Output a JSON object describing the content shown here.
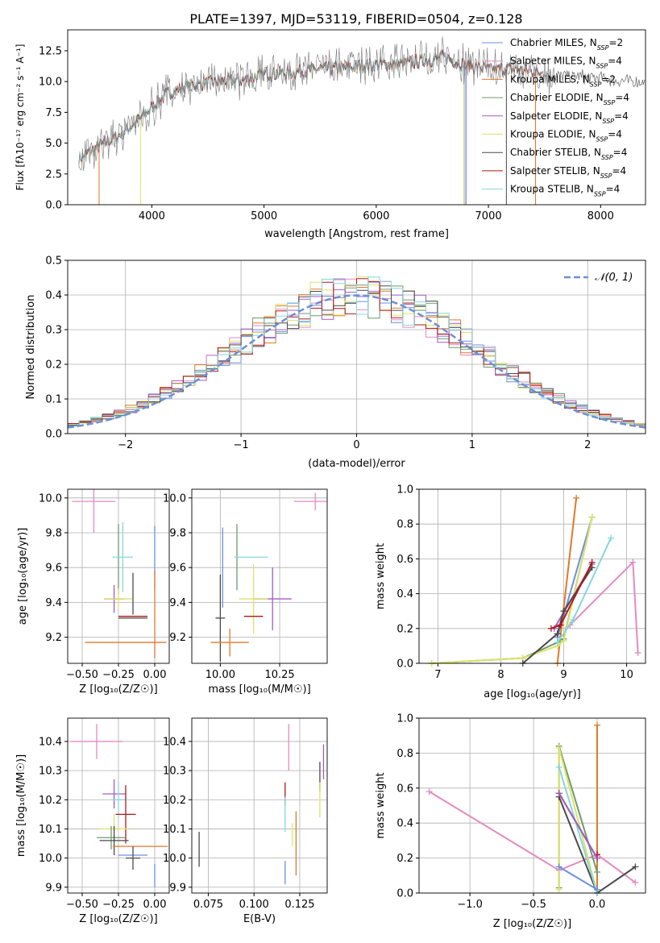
{
  "title": "PLATE=1397, MJD=53119, FIBERID=0504, z=0.128",
  "colors": {
    "Chabrier MILES": "#6b8fe0",
    "Salpeter MILES": "#e58ac1",
    "Kroupa MILES": "#e07a28",
    "Chabrier ELODIE": "#6e9a6e",
    "Salpeter ELODIE": "#a05cc8",
    "Kroupa ELODIE": "#dde36a",
    "Chabrier STELIB": "#4a4a4a",
    "Salpeter STELIB": "#b01818",
    "Kroupa STELIB": "#86d6dc",
    "gauss": "#6b8fd6"
  },
  "legend_spectrum": [
    {
      "model": "Chabrier MILES",
      "label": "Chabrier MILES, N",
      "sub": "SSP",
      "tail": "=2"
    },
    {
      "model": "Salpeter MILES",
      "label": "Salpeter MILES, N",
      "sub": "SSP",
      "tail": "=4"
    },
    {
      "model": "Kroupa MILES",
      "label": "Kroupa MILES, N",
      "sub": "SSP",
      "tail": "=2"
    },
    {
      "model": "Chabrier ELODIE",
      "label": "Chabrier ELODIE, N",
      "sub": "SSP",
      "tail": "=4"
    },
    {
      "model": "Salpeter ELODIE",
      "label": "Salpeter ELODIE, N",
      "sub": "SSP",
      "tail": "=4"
    },
    {
      "model": "Kroupa ELODIE",
      "label": "Kroupa ELODIE, N",
      "sub": "SSP",
      "tail": "=4"
    },
    {
      "model": "Chabrier STELIB",
      "label": "Chabrier STELIB, N",
      "sub": "SSP",
      "tail": "=4"
    },
    {
      "model": "Salpeter STELIB",
      "label": "Salpeter STELIB, N",
      "sub": "SSP",
      "tail": "=4"
    },
    {
      "model": "Kroupa STELIB",
      "label": "Kroupa STELIB, N",
      "sub": "SSP",
      "tail": "=4"
    }
  ],
  "chart_data": [
    {
      "id": "spectrum",
      "type": "line",
      "xlabel": "wavelength [Angstrom, rest frame]",
      "ylabel": "Flux [fλ10⁻¹⁷ erg cm⁻² s⁻¹ A⁻¹]",
      "xlim": [
        3250,
        8400
      ],
      "ylim": [
        0,
        14.2
      ],
      "xticks": [
        4000,
        5000,
        6000,
        7000,
        8000
      ],
      "yticks": [
        0.0,
        2.5,
        5.0,
        7.5,
        10.0,
        12.5
      ],
      "grid": false,
      "legend": "top-right",
      "continuum_x": [
        3350,
        3500,
        3700,
        3850,
        3950,
        4050,
        4150,
        4300,
        4500,
        4800,
        5000,
        5200,
        5500,
        5800,
        6000,
        6200,
        6500,
        6600,
        6800,
        7000,
        7200,
        7400,
        7600,
        7800,
        8000,
        8200,
        8400
      ],
      "continuum_y": [
        3.7,
        4.6,
        5.6,
        6.6,
        7.5,
        8.3,
        9.1,
        9.6,
        9.9,
        10.1,
        10.6,
        10.7,
        11.0,
        11.2,
        11.4,
        11.4,
        11.8,
        12.0,
        11.3,
        11.0,
        11.0,
        10.8,
        10.5,
        10.4,
        10.3,
        10.1,
        10.0
      ]
    },
    {
      "id": "residuals",
      "type": "histogram",
      "xlabel": "(data-model)/error",
      "ylabel": "Normed distribution",
      "xlim": [
        -2.5,
        2.5
      ],
      "ylim": [
        0,
        0.5
      ],
      "xticks": [
        -2,
        -1,
        0,
        1,
        2
      ],
      "yticks": [
        0.0,
        0.1,
        0.2,
        0.3,
        0.4,
        0.5
      ],
      "grid": true,
      "legend": "top-right",
      "gauss_label": "𝒩(0, 1)"
    },
    {
      "id": "age-vs-Z",
      "type": "scatter",
      "xlabel": "Z [log₁₀(Z/Z☉)]",
      "ylabel": "age  [log₁₀(age/yr)]",
      "xlim": [
        -0.6,
        0.1
      ],
      "ylim": [
        9.05,
        10.05
      ],
      "xticks": [
        -0.5,
        -0.25,
        0.0
      ],
      "xticklabels": [
        "−0.50",
        "−0.25",
        "0.00"
      ],
      "yticks": [
        9.2,
        9.4,
        9.6,
        9.8,
        10.0
      ],
      "grid": true,
      "points": [
        {
          "model": "Salpeter MILES",
          "x": -0.42,
          "y": 9.98,
          "xerr": 0.15,
          "yerr": 0.18
        },
        {
          "model": "Chabrier ELODIE",
          "x": -0.25,
          "y": 9.65,
          "xerr": 0.0,
          "yerr": 0.2
        },
        {
          "model": "Kroupa STELIB",
          "x": -0.22,
          "y": 9.66,
          "xerr": 0.07,
          "yerr": 0.2
        },
        {
          "model": "Chabrier MILES",
          "x": 0.0,
          "y": 9.66,
          "xerr": 0.0,
          "yerr": 0.18
        },
        {
          "model": "Salpeter ELODIE",
          "x": -0.28,
          "y": 9.42,
          "xerr": 0.07,
          "yerr": 0.08
        },
        {
          "model": "Kroupa ELODIE",
          "x": -0.25,
          "y": 9.42,
          "xerr": 0.1,
          "yerr": 0.06
        },
        {
          "model": "Chabrier STELIB",
          "x": -0.15,
          "y": 9.45,
          "xerr": 0.0,
          "yerr": 0.12
        },
        {
          "model": "Salpeter STELIB",
          "x": -0.15,
          "y": 9.32,
          "xerr": 0.1,
          "yerr": 0.0
        },
        {
          "model": "Chabrier STELIB",
          "x": -0.15,
          "y": 9.31,
          "xerr": 0.1,
          "yerr": 0.0
        },
        {
          "model": "Kroupa MILES",
          "x": -0.2,
          "y": 9.17,
          "xerr": 0.28,
          "yerr": 0.0
        },
        {
          "model": "Kroupa MILES",
          "x": 0.0,
          "y": 9.33,
          "xerr": 0.0,
          "yerr": 0.25
        }
      ]
    },
    {
      "id": "age-vs-mass",
      "type": "scatter",
      "xlabel": "mass [log₁₀(M/M☉)]",
      "xlim": [
        9.88,
        10.45
      ],
      "ylim": [
        9.05,
        10.05
      ],
      "xticks": [
        10.0,
        10.25
      ],
      "xticklabels": [
        "10.00",
        "10.25"
      ],
      "yticks": [
        9.2,
        9.4,
        9.6,
        9.8,
        10.0
      ],
      "grid": true,
      "points": [
        {
          "model": "Salpeter MILES",
          "x": 10.4,
          "y": 9.98,
          "xerr": 0.09,
          "yerr": 0.05
        },
        {
          "model": "Chabrier ELODIE",
          "x": 10.07,
          "y": 9.66,
          "xerr": 0.0,
          "yerr": 0.19
        },
        {
          "model": "Kroupa STELIB",
          "x": 10.13,
          "y": 9.66,
          "xerr": 0.07,
          "yerr": 0.0
        },
        {
          "model": "Salpeter ELODIE",
          "x": 10.22,
          "y": 9.42,
          "xerr": 0.08,
          "yerr": 0.18
        },
        {
          "model": "Kroupa ELODIE",
          "x": 10.14,
          "y": 9.42,
          "xerr": 0.06,
          "yerr": 0.2
        },
        {
          "model": "Chabrier MILES",
          "x": 10.01,
          "y": 9.6,
          "xerr": 0.0,
          "yerr": 0.23
        },
        {
          "model": "Chabrier STELIB",
          "x": 10.0,
          "y": 9.31,
          "xerr": 0.02,
          "yerr": 0.25
        },
        {
          "model": "Salpeter STELIB",
          "x": 10.14,
          "y": 9.32,
          "xerr": 0.04,
          "yerr": 0.0
        },
        {
          "model": "Kroupa MILES",
          "x": 10.04,
          "y": 9.17,
          "xerr": 0.08,
          "yerr": 0.08
        }
      ]
    },
    {
      "id": "weight-vs-age",
      "type": "line",
      "xlabel": "age  [log₁₀(age/yr)]",
      "ylabel": "mass weight",
      "xlim": [
        6.7,
        10.3
      ],
      "ylim": [
        0,
        1
      ],
      "xticks": [
        7,
        8,
        9,
        10
      ],
      "yticks": [
        0.0,
        0.2,
        0.4,
        0.6,
        0.8,
        1.0
      ],
      "grid": true,
      "series": [
        {
          "model": "Chabrier MILES",
          "x": [
            8.9,
            9.45
          ],
          "y": [
            0.15,
            0.84
          ]
        },
        {
          "model": "Salpeter MILES",
          "x": [
            9.1,
            10.1,
            10.18
          ],
          "y": [
            0.22,
            0.58,
            0.06
          ]
        },
        {
          "model": "Kroupa MILES",
          "x": [
            8.9,
            9.2
          ],
          "y": [
            0.0,
            0.95
          ]
        },
        {
          "model": "Chabrier ELODIE",
          "x": [
            6.9,
            8.35,
            8.9,
            9.0,
            9.45
          ],
          "y": [
            0.0,
            0.03,
            0.12,
            0.14,
            0.84
          ]
        },
        {
          "model": "Salpeter ELODIE",
          "x": [
            8.85,
            9.45
          ],
          "y": [
            0.2,
            0.57
          ]
        },
        {
          "model": "Kroupa ELODIE",
          "x": [
            6.9,
            8.35,
            8.9,
            9.0,
            9.45
          ],
          "y": [
            0.0,
            0.03,
            0.1,
            0.13,
            0.84
          ]
        },
        {
          "model": "Chabrier STELIB",
          "x": [
            8.35,
            8.9,
            9.0,
            9.45
          ],
          "y": [
            0.0,
            0.17,
            0.3,
            0.55
          ]
        },
        {
          "model": "Salpeter STELIB",
          "x": [
            8.8,
            8.95,
            9.45
          ],
          "y": [
            0.2,
            0.22,
            0.58
          ]
        },
        {
          "model": "Kroupa STELIB",
          "x": [
            8.9,
            9.15,
            9.75
          ],
          "y": [
            0.12,
            0.25,
            0.72
          ]
        }
      ]
    },
    {
      "id": "mass-vs-Z",
      "type": "scatter",
      "xlabel": "Z [log₁₀(Z/Z☉)]",
      "ylabel": "mass [log₁₀(M/M☉)]",
      "xlim": [
        -0.6,
        0.1
      ],
      "ylim": [
        9.88,
        10.48
      ],
      "xticks": [
        -0.5,
        -0.25,
        0.0
      ],
      "xticklabels": [
        "−0.50",
        "−0.25",
        "0.00"
      ],
      "yticks": [
        9.9,
        10.0,
        10.1,
        10.2,
        10.3,
        10.4
      ],
      "grid": true,
      "points": [
        {
          "model": "Salpeter MILES",
          "x": -0.4,
          "y": 10.4,
          "xerr": 0.18,
          "yerr": 0.06
        },
        {
          "model": "Salpeter ELODIE",
          "x": -0.28,
          "y": 10.22,
          "xerr": 0.08,
          "yerr": 0.05
        },
        {
          "model": "Kroupa STELIB",
          "x": -0.25,
          "y": 10.2,
          "xerr": 0.05,
          "yerr": 0.06
        },
        {
          "model": "Salpeter STELIB",
          "x": -0.2,
          "y": 10.15,
          "xerr": 0.07,
          "yerr": 0.1
        },
        {
          "model": "Kroupa ELODIE",
          "x": -0.28,
          "y": 10.1,
          "xerr": 0.1,
          "yerr": 0.05
        },
        {
          "model": "Chabrier ELODIE",
          "x": -0.3,
          "y": 10.07,
          "xerr": 0.1,
          "yerr": 0.04
        },
        {
          "model": "Chabrier STELIB",
          "x": -0.28,
          "y": 10.06,
          "xerr": 0.1,
          "yerr": 0.05
        },
        {
          "model": "Kroupa MILES",
          "x": -0.1,
          "y": 10.04,
          "xerr": 0.19,
          "yerr": 0.0
        },
        {
          "model": "Chabrier MILES",
          "x": -0.15,
          "y": 10.01,
          "xerr": 0.1,
          "yerr": 0.0
        },
        {
          "model": "Chabrier STELIB",
          "x": -0.15,
          "y": 10.0,
          "xerr": 0.05,
          "yerr": 0.04
        },
        {
          "model": "Chabrier MILES",
          "x": 0.0,
          "y": 9.94,
          "xerr": 0.0,
          "yerr": 0.04
        }
      ]
    },
    {
      "id": "mass-vs-EBV",
      "type": "scatter",
      "xlabel": "E(B-V)",
      "xlim": [
        0.066,
        0.14
      ],
      "ylim": [
        9.88,
        10.48
      ],
      "xticks": [
        0.075,
        0.1,
        0.125
      ],
      "xticklabels": [
        "0.075",
        "0.100",
        "0.125"
      ],
      "yticks": [
        9.9,
        10.0,
        10.1,
        10.2,
        10.3,
        10.4
      ],
      "grid": true,
      "points": [
        {
          "model": "Salpeter MILES",
          "x": 0.119,
          "y": 10.38,
          "xerr": 0.0,
          "yerr": 0.08
        },
        {
          "model": "Salpeter ELODIE",
          "x": 0.138,
          "y": 10.33,
          "xerr": 0.0,
          "yerr": 0.06
        },
        {
          "model": "Chabrier STELIB",
          "x": 0.136,
          "y": 10.28,
          "xerr": 0.0,
          "yerr": 0.05
        },
        {
          "model": "Salpeter STELIB",
          "x": 0.117,
          "y": 10.22,
          "xerr": 0.0,
          "yerr": 0.04
        },
        {
          "model": "Kroupa ELODIE",
          "x": 0.136,
          "y": 10.2,
          "xerr": 0.0,
          "yerr": 0.06
        },
        {
          "model": "Kroupa STELIB",
          "x": 0.117,
          "y": 10.15,
          "xerr": 0.0,
          "yerr": 0.06
        },
        {
          "model": "Kroupa MILES",
          "x": 0.123,
          "y": 10.05,
          "xerr": 0.0,
          "yerr": 0.11
        },
        {
          "model": "Chabrier STELIB",
          "x": 0.07,
          "y": 10.03,
          "xerr": 0.0,
          "yerr": 0.06
        },
        {
          "model": "Kroupa ELODIE",
          "x": 0.121,
          "y": 10.08,
          "xerr": 0.0,
          "yerr": 0.04
        },
        {
          "model": "Chabrier MILES",
          "x": 0.117,
          "y": 9.95,
          "xerr": 0.0,
          "yerr": 0.04
        }
      ]
    },
    {
      "id": "weight-vs-Z",
      "type": "line",
      "xlabel": "Z [log₁₀(Z/Z☉)]",
      "ylabel": "mass weight",
      "xlim": [
        -1.4,
        0.38
      ],
      "ylim": [
        0,
        1
      ],
      "xticks": [
        -1.0,
        -0.5,
        0.0
      ],
      "xticklabels": [
        "−1.0",
        "−0.5",
        "0.0"
      ],
      "yticks": [
        0.0,
        0.2,
        0.4,
        0.6,
        0.8,
        1.0
      ],
      "grid": true,
      "series": [
        {
          "model": "Salpeter MILES",
          "x": [
            -1.32,
            -0.3,
            0.0,
            0.3
          ],
          "y": [
            0.58,
            0.13,
            0.22,
            0.06
          ]
        },
        {
          "model": "Kroupa MILES",
          "x": [
            0.0,
            0.0
          ],
          "y": [
            0.0,
            0.96
          ]
        },
        {
          "model": "Chabrier ELODIE",
          "x": [
            -0.3,
            -0.3,
            0.0
          ],
          "y": [
            0.03,
            0.84,
            0.12
          ]
        },
        {
          "model": "Kroupa ELODIE",
          "x": [
            -0.3,
            -0.3,
            0.0
          ],
          "y": [
            0.02,
            0.83,
            0.0
          ]
        },
        {
          "model": "Chabrier STELIB",
          "x": [
            -0.3,
            0.0,
            0.3
          ],
          "y": [
            0.55,
            0.0,
            0.15
          ]
        },
        {
          "model": "Salpeter STELIB",
          "x": [
            -0.3,
            0.0,
            0.0
          ],
          "y": [
            0.57,
            0.2,
            0.22
          ]
        },
        {
          "model": "Kroupa STELIB",
          "x": [
            -0.3,
            0.0
          ],
          "y": [
            0.72,
            0.0
          ]
        },
        {
          "model": "Salpeter ELODIE",
          "x": [
            -0.3,
            0.0
          ],
          "y": [
            0.57,
            0.2
          ]
        },
        {
          "model": "Chabrier MILES",
          "x": [
            -0.3,
            0.0
          ],
          "y": [
            0.15,
            0.02
          ]
        }
      ]
    }
  ]
}
